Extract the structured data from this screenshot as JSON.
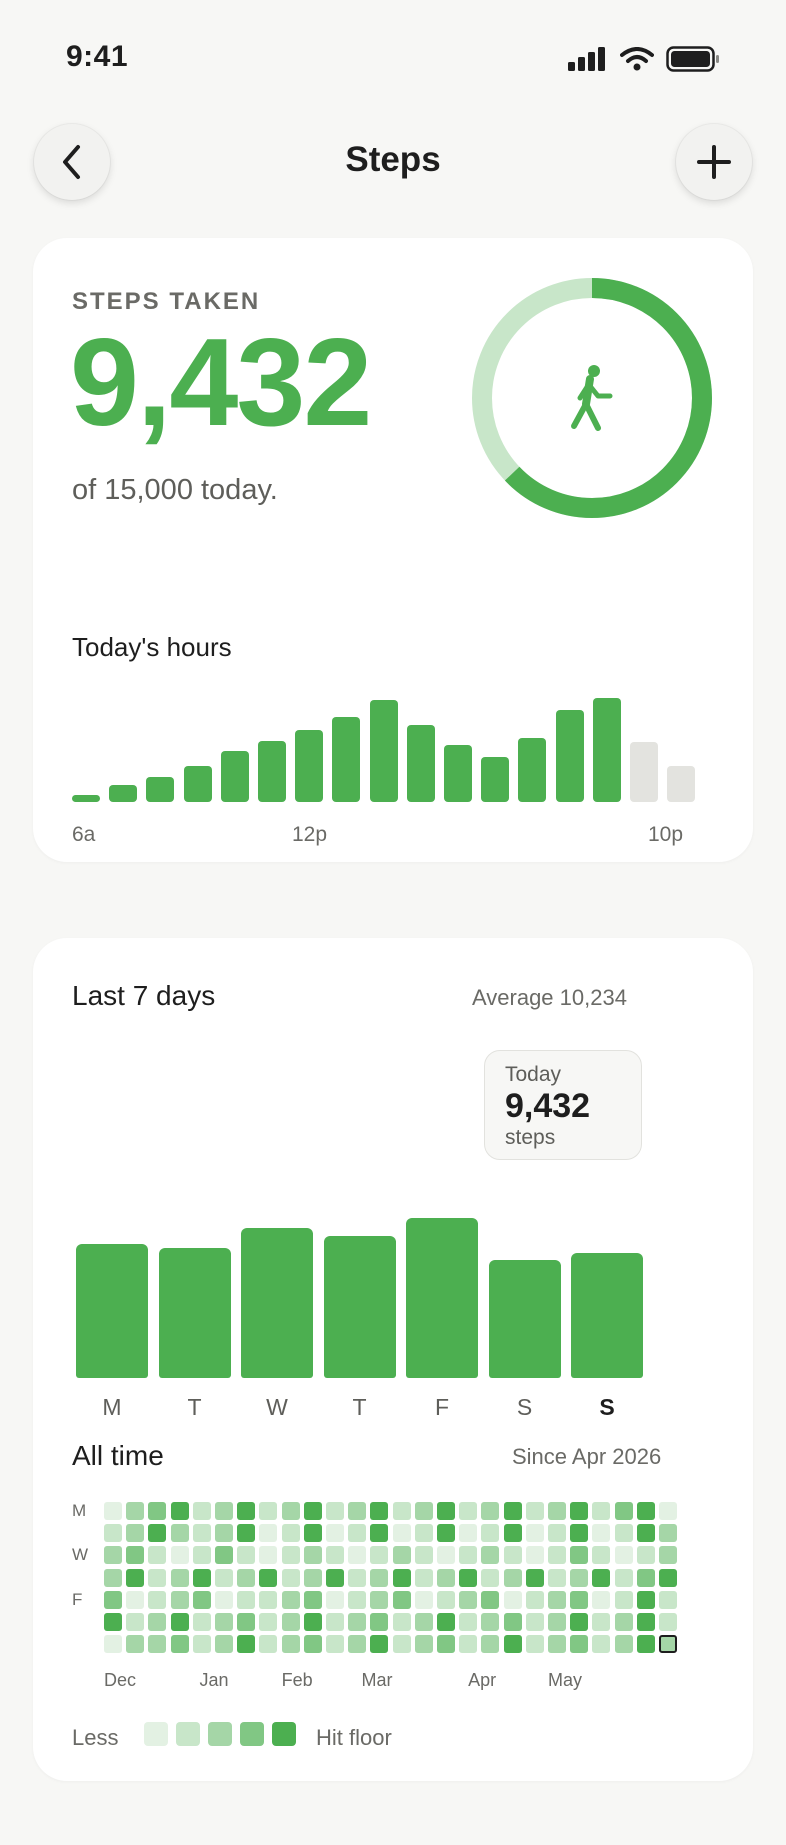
{
  "status_bar": {
    "time": "9:41"
  },
  "header": {
    "title": "Steps"
  },
  "today": {
    "label": "STEPS TAKEN",
    "steps": "9,432",
    "goal_text": "of 15,000 today.",
    "progress_fraction": 0.629,
    "colors": {
      "accent": "#4caf50",
      "ring_track": "#c8e6c9"
    }
  },
  "hours_chart": {
    "title": "Today's hours",
    "hour_levels": [
      0.07,
      0.16,
      0.24,
      0.35,
      0.49,
      0.59,
      0.69,
      0.82,
      0.98,
      0.74,
      0.55,
      0.43,
      0.62,
      0.88,
      1.0,
      0.58,
      0.35
    ],
    "future_from_index": 15,
    "axis_labels": [
      "6a",
      "12p",
      "10p"
    ]
  },
  "weekly": {
    "title": "Last 7 days",
    "average_text": "Average 10,234",
    "tooltip": {
      "label": "Today",
      "value": "9,432",
      "unit": "steps"
    },
    "days": [
      "M",
      "T",
      "W",
      "T",
      "F",
      "S",
      "S"
    ],
    "current_index": 6,
    "levels": [
      0.84,
      0.81,
      0.94,
      0.89,
      1.0,
      0.74,
      0.78
    ]
  },
  "all_time": {
    "title": "All time",
    "since_text": "Since Apr 2026",
    "row_labels": [
      "M",
      "",
      "W",
      "",
      "F",
      "",
      ""
    ],
    "months": [
      "Dec",
      "Jan",
      "Feb",
      "Mar",
      "Apr",
      "May"
    ],
    "grid_levels": [
      [
        0,
        2,
        3,
        4,
        1,
        2,
        4,
        1,
        2,
        4,
        1,
        2,
        4,
        1,
        2,
        4,
        1,
        2,
        4,
        1,
        2,
        4,
        1,
        3,
        4,
        0
      ],
      [
        1,
        2,
        4,
        2,
        1,
        2,
        4,
        0,
        1,
        4,
        0,
        1,
        4,
        0,
        1,
        4,
        0,
        1,
        4,
        0,
        1,
        4,
        0,
        1,
        4,
        2
      ],
      [
        2,
        3,
        1,
        0,
        1,
        3,
        1,
        0,
        1,
        2,
        1,
        0,
        1,
        2,
        1,
        0,
        1,
        2,
        1,
        0,
        1,
        3,
        1,
        0,
        1,
        2
      ],
      [
        2,
        4,
        1,
        2,
        4,
        1,
        2,
        4,
        1,
        2,
        4,
        1,
        2,
        4,
        1,
        2,
        4,
        1,
        2,
        4,
        1,
        2,
        4,
        1,
        3,
        4
      ],
      [
        3,
        0,
        1,
        2,
        3,
        0,
        1,
        1,
        2,
        3,
        0,
        1,
        2,
        3,
        0,
        1,
        2,
        3,
        0,
        1,
        2,
        3,
        0,
        1,
        4,
        1
      ],
      [
        4,
        1,
        2,
        4,
        1,
        2,
        3,
        1,
        2,
        4,
        1,
        2,
        3,
        1,
        2,
        4,
        1,
        2,
        3,
        1,
        2,
        4,
        1,
        2,
        4,
        1
      ],
      [
        0,
        2,
        2,
        3,
        1,
        2,
        4,
        1,
        2,
        3,
        1,
        2,
        4,
        1,
        2,
        3,
        1,
        2,
        4,
        1,
        2,
        3,
        1,
        2,
        4,
        2
      ]
    ],
    "today_cell": {
      "row": 6,
      "col": 25
    },
    "legend": {
      "less": "Less",
      "more": "Hit floor"
    },
    "palette": [
      "#e3f1e3",
      "#c8e6c9",
      "#a5d6a7",
      "#81c784",
      "#4caf50"
    ]
  },
  "icons": [
    "signal-icon",
    "wifi-icon",
    "battery-icon",
    "chevron-left-icon",
    "plus-icon",
    "walking-person-icon"
  ]
}
